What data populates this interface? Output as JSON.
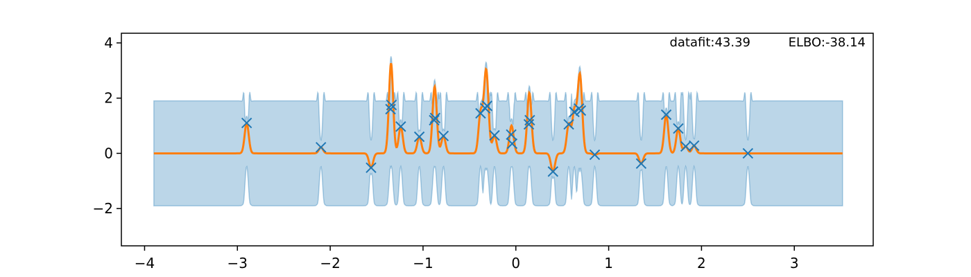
{
  "chart_data": {
    "type": "line",
    "title": "",
    "xlabel": "",
    "ylabel": "",
    "xlim": [
      -4.25,
      3.85
    ],
    "ylim": [
      -3.35,
      4.35
    ],
    "xticks": [
      -4,
      -3,
      -2,
      -1,
      0,
      1,
      2,
      3
    ],
    "yticks": [
      -2,
      0,
      2,
      4
    ],
    "xtick_labels": [
      "−4",
      "−3",
      "−2",
      "−1",
      "0",
      "1",
      "2",
      "3"
    ],
    "ytick_labels": [
      "−2",
      "0",
      "2",
      "4"
    ],
    "grid": false,
    "annotations": {
      "datafit": "datafit:43.39",
      "elbo": "ELBO:-38.14"
    },
    "colors": {
      "points": "#1f77b4",
      "mean": "#ff7f0e",
      "band_fill": "#1f77b4",
      "band_opacity": 0.3
    },
    "x_range": [
      -3.9,
      3.52
    ],
    "band": {
      "base_upper": 1.9,
      "base_lower": -1.9,
      "spike_upper": 2.35,
      "spike_lower": -2.0
    },
    "observations": [
      {
        "x": -2.9,
        "y": 1.1
      },
      {
        "x": -2.1,
        "y": 0.22
      },
      {
        "x": -1.56,
        "y": -0.52
      },
      {
        "x": -1.35,
        "y": 1.6
      },
      {
        "x": -1.34,
        "y": 1.75
      },
      {
        "x": -1.24,
        "y": 0.97
      },
      {
        "x": -1.04,
        "y": 0.6
      },
      {
        "x": -0.88,
        "y": 1.2
      },
      {
        "x": -0.87,
        "y": 1.28
      },
      {
        "x": -0.78,
        "y": 0.63
      },
      {
        "x": -0.38,
        "y": 1.45
      },
      {
        "x": -0.33,
        "y": 1.63
      },
      {
        "x": -0.31,
        "y": 1.72
      },
      {
        "x": -0.23,
        "y": 0.65
      },
      {
        "x": -0.05,
        "y": 0.68
      },
      {
        "x": -0.04,
        "y": 0.35
      },
      {
        "x": 0.14,
        "y": 1.05
      },
      {
        "x": 0.15,
        "y": 1.2
      },
      {
        "x": 0.4,
        "y": -0.66
      },
      {
        "x": 0.57,
        "y": 1.05
      },
      {
        "x": 0.63,
        "y": 1.5
      },
      {
        "x": 0.68,
        "y": 1.62
      },
      {
        "x": 0.7,
        "y": 1.55
      },
      {
        "x": 0.85,
        "y": -0.05
      },
      {
        "x": 1.35,
        "y": -0.37
      },
      {
        "x": 1.62,
        "y": 1.4
      },
      {
        "x": 1.75,
        "y": 0.9
      },
      {
        "x": 1.83,
        "y": 0.25
      },
      {
        "x": 1.92,
        "y": 0.28
      },
      {
        "x": 2.5,
        "y": 0.0
      }
    ]
  }
}
